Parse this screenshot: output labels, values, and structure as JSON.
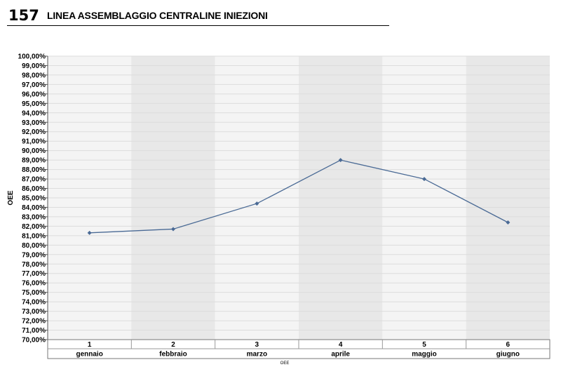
{
  "header": {
    "number": "157",
    "title": "LINEA ASSEMBLAGGIO CENTRALINE INIEZIONI"
  },
  "chart_data": {
    "type": "line",
    "title": "",
    "ylabel": "OEE",
    "xlabel": "",
    "legend_label": "OEE",
    "ylim": [
      0.7,
      1.0
    ],
    "y_tick_step": 0.01,
    "y_tick_format": "percent-2dec-comma",
    "categories": [
      "1",
      "2",
      "3",
      "4",
      "5",
      "6"
    ],
    "category_sublabels": [
      "gennaio",
      "febbraio",
      "marzo",
      "aprile",
      "maggio",
      "giugno"
    ],
    "grid": true,
    "alternating_bands": true,
    "series": [
      {
        "name": "OEE",
        "color": "#4a6a95",
        "values": [
          0.813,
          0.817,
          0.844,
          0.89,
          0.87,
          0.824
        ]
      }
    ]
  }
}
